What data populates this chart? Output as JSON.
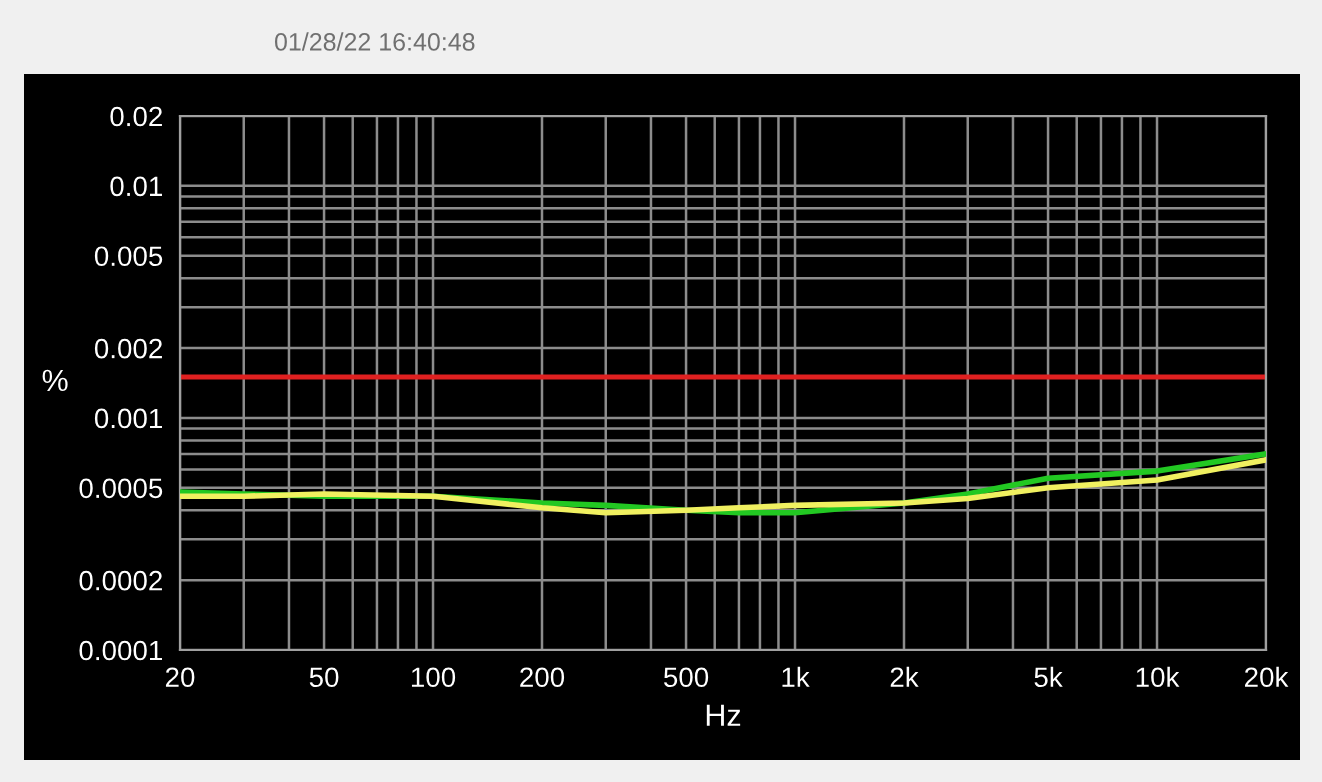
{
  "chart_data": {
    "type": "line",
    "subtitle": "01/28/22 16:40:48",
    "xlabel": "Hz",
    "ylabel": "%",
    "log": "xy",
    "grid": true,
    "marker": "none",
    "line_style": "solid",
    "x": [
      20,
      30,
      50,
      100,
      200,
      300,
      500,
      700,
      1000,
      2000,
      3000,
      5000,
      10000,
      20000
    ],
    "series": [
      {
        "color": "#22c822",
        "values": [
          0.00048,
          0.00047,
          0.00046,
          0.00046,
          0.00043,
          0.00042,
          0.0004,
          0.00039,
          0.00039,
          0.00043,
          0.00047,
          0.00055,
          0.00059,
          0.0007
        ]
      },
      {
        "color": "#f0f060",
        "values": [
          0.00046,
          0.00046,
          0.00047,
          0.00046,
          0.00041,
          0.00039,
          0.0004,
          0.00041,
          0.00042,
          0.00043,
          0.00045,
          0.0005,
          0.00054,
          0.00066
        ]
      }
    ],
    "ref_lines": [
      {
        "axis": "y",
        "value": 0.0015,
        "color": "#e02020"
      }
    ],
    "xlim": [
      20,
      20000
    ],
    "ylim": [
      0.0001,
      0.02
    ],
    "xticks": [
      20,
      {
        "value": 30,
        "label": null
      },
      {
        "value": 40,
        "label": null
      },
      50,
      {
        "value": 60,
        "label": null
      },
      {
        "value": 70,
        "label": null
      },
      {
        "value": 80,
        "label": null
      },
      {
        "value": 90,
        "label": null
      },
      100,
      200,
      {
        "value": 300,
        "label": null
      },
      {
        "value": 400,
        "label": null
      },
      500,
      {
        "value": 600,
        "label": null
      },
      {
        "value": 700,
        "label": null
      },
      {
        "value": 800,
        "label": null
      },
      {
        "value": 900,
        "label": null
      },
      {
        "value": 1000,
        "label": "1k"
      },
      {
        "value": 2000,
        "label": "2k"
      },
      {
        "value": 3000,
        "label": null
      },
      {
        "value": 4000,
        "label": null
      },
      {
        "value": 5000,
        "label": "5k"
      },
      {
        "value": 6000,
        "label": null
      },
      {
        "value": 7000,
        "label": null
      },
      {
        "value": 8000,
        "label": null
      },
      {
        "value": 9000,
        "label": null
      },
      {
        "value": 10000,
        "label": "10k"
      },
      {
        "value": 20000,
        "label": "20k"
      }
    ],
    "yticks": [
      0.0001,
      0.0002,
      {
        "value": 0.0003,
        "label": null
      },
      {
        "value": 0.0004,
        "label": null
      },
      0.0005,
      {
        "value": 0.0006,
        "label": null
      },
      {
        "value": 0.0007,
        "label": null
      },
      {
        "value": 0.0008,
        "label": null
      },
      {
        "value": 0.0009,
        "label": null
      },
      0.001,
      0.002,
      {
        "value": 0.003,
        "label": null
      },
      {
        "value": 0.004,
        "label": null
      },
      0.005,
      {
        "value": 0.006,
        "label": null
      },
      {
        "value": 0.007,
        "label": null
      },
      {
        "value": 0.008,
        "label": null
      },
      {
        "value": 0.009,
        "label": null
      },
      0.01,
      0.02
    ]
  }
}
